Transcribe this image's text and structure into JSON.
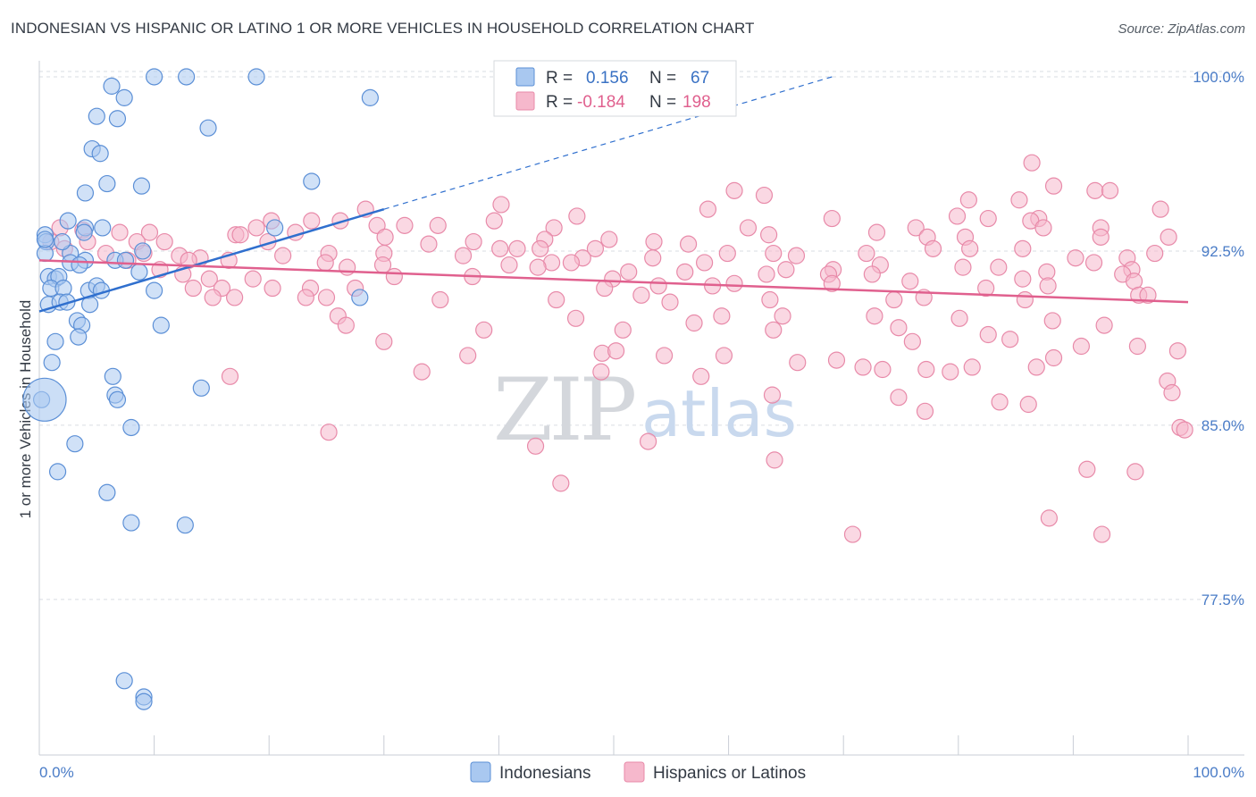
{
  "header": {
    "title": "INDONESIAN VS HISPANIC OR LATINO 1 OR MORE VEHICLES IN HOUSEHOLD CORRELATION CHART",
    "source": "Source: ZipAtlas.com"
  },
  "watermark": {
    "zip": "ZIP",
    "atlas": "atlas"
  },
  "legend_box": {
    "rows": [
      {
        "r_label": "R =",
        "r_value": "0.156",
        "n_label": "N =",
        "n_value": "67",
        "color": "#a9c8f0"
      },
      {
        "r_label": "R =",
        "r_value": "-0.184",
        "n_label": "N =",
        "n_value": "198",
        "color": "#f6b8cc"
      }
    ]
  },
  "bottom_legend": {
    "items": [
      "Indonesians",
      "Hispanics or Latinos"
    ]
  },
  "colors": {
    "blue_fill": "#a9c8f0",
    "blue_stroke": "#5b8fd6",
    "blue_line": "#2f6fce",
    "pink_fill": "#f6b8cc",
    "pink_stroke": "#e88aa9",
    "pink_line": "#e0608e",
    "grid": "#d9dde3"
  },
  "chart_data": {
    "type": "scatter",
    "xlabel": "",
    "ylabel": "1 or more Vehicles in Household",
    "xlim": [
      0,
      100
    ],
    "ylim": [
      70.8,
      101.0
    ],
    "x_tick_labels": [
      "0.0%",
      "100.0%"
    ],
    "y_ticks": [
      100.0,
      92.5,
      85.0,
      77.5
    ],
    "y_tick_labels": [
      "100.0%",
      "92.5%",
      "85.0%",
      "77.5%"
    ],
    "grid": "horizontal dashed",
    "legend": "top-center",
    "series": [
      {
        "name": "Indonesians",
        "R": 0.156,
        "N": 67,
        "trend": {
          "x0": 0,
          "y0": 89.9,
          "x1": 30,
          "y1": 94.3,
          "dash_x1": 69,
          "dash_y1": 100.0
        },
        "points": [
          [
            10.0,
            100.0
          ],
          [
            12.8,
            100.0
          ],
          [
            18.9,
            100.0
          ],
          [
            6.3,
            99.6
          ],
          [
            7.4,
            99.1
          ],
          [
            28.8,
            99.1
          ],
          [
            6.8,
            98.2
          ],
          [
            5.0,
            98.3
          ],
          [
            14.7,
            97.8
          ],
          [
            4.6,
            96.9
          ],
          [
            5.3,
            96.7
          ],
          [
            5.9,
            95.4
          ],
          [
            8.9,
            95.3
          ],
          [
            23.7,
            95.5
          ],
          [
            4.0,
            95.0
          ],
          [
            0.5,
            93.2
          ],
          [
            2.5,
            93.8
          ],
          [
            4.0,
            93.5
          ],
          [
            5.5,
            93.5
          ],
          [
            3.9,
            93.3
          ],
          [
            20.5,
            93.5
          ],
          [
            0.6,
            92.9
          ],
          [
            0.5,
            92.4
          ],
          [
            2.7,
            92.4
          ],
          [
            2.7,
            92.0
          ],
          [
            4.0,
            92.1
          ],
          [
            3.5,
            91.9
          ],
          [
            6.6,
            92.1
          ],
          [
            7.5,
            92.1
          ],
          [
            9.0,
            92.5
          ],
          [
            8.7,
            91.6
          ],
          [
            0.8,
            91.4
          ],
          [
            1.4,
            91.3
          ],
          [
            1.7,
            91.4
          ],
          [
            1.0,
            90.9
          ],
          [
            2.1,
            90.9
          ],
          [
            4.3,
            90.8
          ],
          [
            5.0,
            91.0
          ],
          [
            5.4,
            90.8
          ],
          [
            10.0,
            90.8
          ],
          [
            27.9,
            90.5
          ],
          [
            0.8,
            90.2
          ],
          [
            1.8,
            90.3
          ],
          [
            2.4,
            90.3
          ],
          [
            4.4,
            90.2
          ],
          [
            3.3,
            89.5
          ],
          [
            3.7,
            89.3
          ],
          [
            10.6,
            89.3
          ],
          [
            1.4,
            88.6
          ],
          [
            3.4,
            88.8
          ],
          [
            1.1,
            87.7
          ],
          [
            6.4,
            87.1
          ],
          [
            14.1,
            86.6
          ],
          [
            6.6,
            86.3
          ],
          [
            6.8,
            86.1
          ],
          [
            0.2,
            86.1
          ],
          [
            8.0,
            84.9
          ],
          [
            3.1,
            84.2
          ],
          [
            1.6,
            83.0
          ],
          [
            5.9,
            82.1
          ],
          [
            8.0,
            80.8
          ],
          [
            12.7,
            80.7
          ],
          [
            7.4,
            74.0
          ],
          [
            9.1,
            73.3
          ],
          [
            9.1,
            73.1
          ],
          [
            0.5,
            93.0
          ],
          [
            2.0,
            92.9
          ]
        ]
      },
      {
        "name": "Hispanics or Latinos",
        "R": -0.184,
        "N": 198,
        "trend": {
          "x0": 0,
          "y0": 92.1,
          "x1": 100,
          "y1": 90.3
        },
        "points": [
          [
            86.4,
            96.3
          ],
          [
            88.3,
            95.3
          ],
          [
            91.9,
            95.1
          ],
          [
            93.2,
            95.1
          ],
          [
            60.5,
            95.1
          ],
          [
            63.1,
            94.9
          ],
          [
            80.9,
            94.7
          ],
          [
            85.3,
            94.7
          ],
          [
            40.2,
            94.5
          ],
          [
            28.4,
            94.3
          ],
          [
            58.2,
            94.3
          ],
          [
            97.6,
            94.3
          ],
          [
            46.8,
            94.0
          ],
          [
            79.9,
            94.0
          ],
          [
            82.6,
            93.9
          ],
          [
            87.0,
            93.9
          ],
          [
            69.0,
            93.9
          ],
          [
            20.2,
            93.8
          ],
          [
            23.7,
            93.8
          ],
          [
            39.6,
            93.8
          ],
          [
            26.2,
            93.8
          ],
          [
            86.3,
            93.8
          ],
          [
            18.9,
            93.5
          ],
          [
            29.4,
            93.6
          ],
          [
            31.8,
            93.6
          ],
          [
            34.7,
            93.6
          ],
          [
            44.8,
            93.5
          ],
          [
            61.7,
            93.5
          ],
          [
            76.3,
            93.5
          ],
          [
            87.4,
            93.5
          ],
          [
            92.4,
            93.5
          ],
          [
            1.8,
            93.5
          ],
          [
            3.8,
            93.4
          ],
          [
            7.0,
            93.3
          ],
          [
            9.6,
            93.3
          ],
          [
            17.1,
            93.2
          ],
          [
            17.5,
            93.2
          ],
          [
            22.3,
            93.3
          ],
          [
            30.1,
            93.1
          ],
          [
            44.0,
            93.0
          ],
          [
            49.6,
            93.0
          ],
          [
            63.5,
            93.2
          ],
          [
            72.9,
            93.3
          ],
          [
            77.3,
            93.1
          ],
          [
            80.6,
            93.1
          ],
          [
            92.4,
            93.1
          ],
          [
            98.3,
            93.1
          ],
          [
            1.0,
            92.9
          ],
          [
            4.2,
            92.9
          ],
          [
            8.5,
            92.9
          ],
          [
            10.9,
            92.9
          ],
          [
            19.9,
            92.9
          ],
          [
            33.9,
            92.8
          ],
          [
            37.8,
            92.9
          ],
          [
            40.1,
            92.6
          ],
          [
            41.6,
            92.6
          ],
          [
            43.6,
            92.6
          ],
          [
            48.4,
            92.6
          ],
          [
            53.5,
            92.9
          ],
          [
            56.5,
            92.8
          ],
          [
            63.9,
            92.4
          ],
          [
            77.8,
            92.6
          ],
          [
            81.0,
            92.6
          ],
          [
            85.6,
            92.6
          ],
          [
            2.2,
            92.6
          ],
          [
            5.8,
            92.4
          ],
          [
            9.1,
            92.4
          ],
          [
            12.2,
            92.3
          ],
          [
            14.0,
            92.2
          ],
          [
            21.2,
            92.3
          ],
          [
            25.2,
            92.4
          ],
          [
            30.0,
            92.4
          ],
          [
            36.9,
            92.3
          ],
          [
            47.3,
            92.2
          ],
          [
            53.4,
            92.2
          ],
          [
            59.9,
            92.4
          ],
          [
            65.9,
            92.3
          ],
          [
            72.0,
            92.4
          ],
          [
            90.2,
            92.2
          ],
          [
            94.7,
            92.2
          ],
          [
            97.1,
            92.4
          ],
          [
            7.7,
            92.1
          ],
          [
            13.0,
            92.1
          ],
          [
            16.5,
            92.1
          ],
          [
            24.9,
            92.0
          ],
          [
            29.9,
            91.9
          ],
          [
            40.9,
            91.9
          ],
          [
            44.6,
            92.0
          ],
          [
            46.3,
            92.0
          ],
          [
            57.9,
            92.0
          ],
          [
            65.0,
            91.7
          ],
          [
            69.1,
            91.7
          ],
          [
            73.2,
            91.9
          ],
          [
            83.5,
            91.8
          ],
          [
            91.8,
            92.0
          ],
          [
            95.1,
            91.7
          ],
          [
            10.5,
            91.7
          ],
          [
            26.8,
            91.8
          ],
          [
            43.4,
            91.8
          ],
          [
            51.3,
            91.6
          ],
          [
            56.2,
            91.6
          ],
          [
            63.3,
            91.5
          ],
          [
            68.7,
            91.5
          ],
          [
            72.5,
            91.5
          ],
          [
            80.4,
            91.8
          ],
          [
            87.7,
            91.6
          ],
          [
            94.3,
            91.5
          ],
          [
            12.5,
            91.5
          ],
          [
            14.8,
            91.3
          ],
          [
            18.6,
            91.3
          ],
          [
            30.9,
            91.4
          ],
          [
            37.7,
            91.4
          ],
          [
            49.9,
            91.3
          ],
          [
            60.5,
            91.1
          ],
          [
            75.8,
            91.2
          ],
          [
            85.6,
            91.3
          ],
          [
            95.3,
            91.2
          ],
          [
            13.4,
            90.9
          ],
          [
            15.9,
            90.9
          ],
          [
            20.3,
            90.9
          ],
          [
            23.6,
            90.9
          ],
          [
            27.5,
            90.9
          ],
          [
            49.2,
            90.9
          ],
          [
            53.9,
            91.0
          ],
          [
            58.6,
            91.0
          ],
          [
            69.0,
            91.1
          ],
          [
            82.4,
            90.9
          ],
          [
            87.8,
            91.0
          ],
          [
            95.7,
            90.6
          ],
          [
            15.1,
            90.5
          ],
          [
            17.0,
            90.5
          ],
          [
            23.2,
            90.5
          ],
          [
            25.0,
            90.5
          ],
          [
            34.9,
            90.4
          ],
          [
            45.0,
            90.4
          ],
          [
            52.4,
            90.6
          ],
          [
            54.9,
            90.3
          ],
          [
            63.6,
            90.4
          ],
          [
            74.4,
            90.4
          ],
          [
            77.0,
            90.5
          ],
          [
            85.8,
            90.4
          ],
          [
            96.5,
            90.6
          ],
          [
            26.0,
            89.7
          ],
          [
            46.7,
            89.6
          ],
          [
            57.0,
            89.4
          ],
          [
            59.4,
            89.7
          ],
          [
            64.7,
            89.7
          ],
          [
            72.7,
            89.7
          ],
          [
            80.1,
            89.6
          ],
          [
            88.2,
            89.5
          ],
          [
            92.7,
            89.3
          ],
          [
            26.7,
            89.3
          ],
          [
            38.7,
            89.1
          ],
          [
            50.8,
            89.1
          ],
          [
            63.9,
            89.1
          ],
          [
            74.8,
            89.2
          ],
          [
            76.0,
            88.6
          ],
          [
            82.6,
            88.9
          ],
          [
            84.5,
            88.7
          ],
          [
            90.7,
            88.4
          ],
          [
            30.0,
            88.6
          ],
          [
            37.3,
            88.0
          ],
          [
            49.0,
            88.1
          ],
          [
            50.2,
            88.2
          ],
          [
            54.4,
            88.0
          ],
          [
            59.6,
            88.0
          ],
          [
            95.6,
            88.4
          ],
          [
            88.3,
            87.9
          ],
          [
            77.2,
            87.4
          ],
          [
            86.8,
            87.5
          ],
          [
            48.9,
            87.3
          ],
          [
            66.0,
            87.7
          ],
          [
            71.7,
            87.5
          ],
          [
            73.4,
            87.4
          ],
          [
            79.3,
            87.3
          ],
          [
            81.2,
            87.5
          ],
          [
            33.3,
            87.3
          ],
          [
            16.6,
            87.1
          ],
          [
            57.6,
            87.1
          ],
          [
            69.4,
            87.8
          ],
          [
            63.8,
            86.3
          ],
          [
            74.8,
            86.2
          ],
          [
            83.6,
            86.0
          ],
          [
            86.1,
            85.9
          ],
          [
            77.1,
            85.6
          ],
          [
            25.2,
            84.7
          ],
          [
            43.2,
            84.1
          ],
          [
            53.0,
            84.3
          ],
          [
            99.1,
            88.2
          ],
          [
            98.2,
            86.9
          ],
          [
            98.6,
            86.4
          ],
          [
            99.3,
            84.9
          ],
          [
            91.2,
            83.1
          ],
          [
            99.7,
            84.8
          ],
          [
            45.4,
            82.5
          ],
          [
            64.0,
            83.5
          ],
          [
            95.4,
            83.0
          ],
          [
            92.5,
            80.3
          ],
          [
            70.8,
            80.3
          ],
          [
            87.9,
            81.0
          ]
        ]
      }
    ]
  }
}
